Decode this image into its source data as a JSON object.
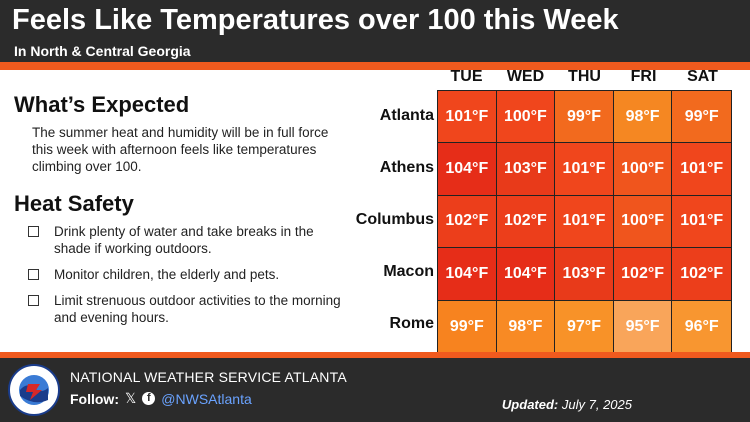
{
  "header": {
    "title": "Feels Like Temperatures over 100 this Week",
    "subtitle": "In North & Central Georgia"
  },
  "expected": {
    "heading": "What’s Expected",
    "text": "The summer heat and humidity will be in full force this week with afternoon feels like temperatures climbing over 100."
  },
  "safety": {
    "heading": "Heat Safety",
    "tips": [
      "Drink plenty of water and take breaks in the shade if working outdoors.",
      "Monitor children, the elderly and pets.",
      "Limit strenuous outdoor activities to the morning and evening hours."
    ]
  },
  "table": {
    "days": [
      "TUE",
      "WED",
      "THU",
      "FRI",
      "SAT"
    ],
    "cities": [
      "Atlanta",
      "Athens",
      "Columbus",
      "Macon",
      "Rome"
    ],
    "rows": [
      [
        "101°F",
        "100°F",
        "99°F",
        "98°F",
        "99°F"
      ],
      [
        "104°F",
        "103°F",
        "101°F",
        "100°F",
        "101°F"
      ],
      [
        "102°F",
        "102°F",
        "101°F",
        "100°F",
        "101°F"
      ],
      [
        "104°F",
        "104°F",
        "103°F",
        "102°F",
        "102°F"
      ],
      [
        "99°F",
        "98°F",
        "97°F",
        "95°F",
        "96°F"
      ]
    ],
    "colors": [
      [
        "#f0461c",
        "#f0461c",
        "#f26a1e",
        "#f58722",
        "#f26a1e"
      ],
      [
        "#e62d18",
        "#e83a1a",
        "#f0461c",
        "#f0551d",
        "#f0461c"
      ],
      [
        "#ec3e1b",
        "#ec3e1b",
        "#f0461c",
        "#f0551d",
        "#f0461c"
      ],
      [
        "#e62d18",
        "#e62d18",
        "#e83a1a",
        "#ec3e1b",
        "#ec3e1b"
      ],
      [
        "#f7831f",
        "#f88a24",
        "#f89228",
        "#f9a55a",
        "#f89630"
      ]
    ]
  },
  "footer": {
    "org": "NATIONAL WEATHER SERVICE ATLANTA",
    "follow_label": "Follow:",
    "x_icon": "x-logo-icon",
    "fb_icon": "facebook-icon",
    "handle": "@NWSAtlanta",
    "updated_label": "Updated:",
    "updated_date": "July 7, 2025"
  },
  "colors": {
    "dark": "#2b2b2b",
    "accent": "#f05a1e",
    "link": "#6aa3ff"
  }
}
